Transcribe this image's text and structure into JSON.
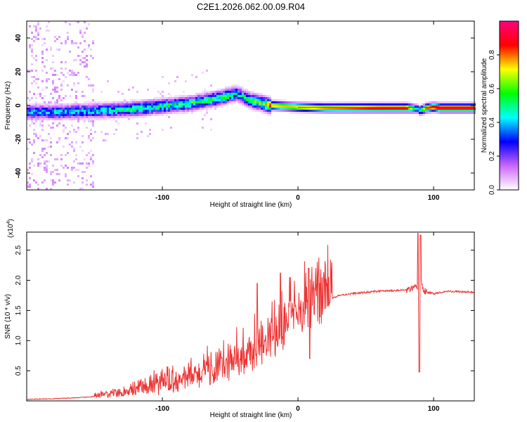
{
  "title": "C2E1.2026.062.00.09.R04",
  "chart_data": [
    {
      "type": "heatmap",
      "title": "C2E1.2026.062.00.09.R04",
      "xlabel": "Height of straight line (km)",
      "ylabel": "Frequency (Hz)",
      "xlim": [
        -200,
        130
      ],
      "ylim": [
        -50,
        50
      ],
      "xticks": [
        -100,
        0,
        100
      ],
      "xtick_labels": [
        "-100",
        "0",
        "100"
      ],
      "yticks": [
        -40,
        -20,
        0,
        20,
        40
      ],
      "ytick_labels": [
        "-40",
        "-20",
        "0",
        "20",
        "40"
      ],
      "colorbar": {
        "label": "Normalized spectral amplitude",
        "range": [
          0,
          1
        ],
        "ticks": [
          0.0,
          0.2,
          0.4,
          0.6,
          0.8
        ],
        "tick_labels": [
          "0.0",
          "0.2",
          "0.4",
          "0.6",
          "0.8"
        ],
        "colors": [
          "#ffffff",
          "#cc66ff",
          "#0000ff",
          "#00ffff",
          "#00ff00",
          "#ffff00",
          "#ff0000",
          "#ff0080"
        ]
      },
      "ridge": {
        "heights_km": [
          -200,
          -180,
          -160,
          -140,
          -120,
          -100,
          -80,
          -60,
          -50,
          -45,
          -40,
          -35,
          -30,
          -25,
          -20,
          -10,
          0,
          20,
          40,
          60,
          80,
          85,
          88,
          90,
          95,
          100,
          105,
          110,
          130
        ],
        "frequency_hz": [
          -4,
          -4,
          -3.5,
          -3,
          -2,
          -0.5,
          1,
          4,
          6,
          7,
          5,
          3,
          2,
          1,
          0,
          -0.5,
          -1,
          -1.5,
          -1.5,
          -1.5,
          -1.5,
          -1.8,
          -2,
          -3,
          -1.5,
          -1,
          -1.5,
          -1.5,
          -1.5
        ],
        "amplitude": [
          0.35,
          0.4,
          0.4,
          0.45,
          0.5,
          0.5,
          0.55,
          0.55,
          0.5,
          0.45,
          0.5,
          0.55,
          0.6,
          0.7,
          0.75,
          0.75,
          0.75,
          0.8,
          0.85,
          0.9,
          0.9,
          0.6,
          0.4,
          0.5,
          0.85,
          0.9,
          0.95,
          0.95,
          0.95
        ]
      }
    },
    {
      "type": "line",
      "xlabel": "Height of straight line (km)",
      "ylabel": "SNR (10 * v/v)",
      "scale_label": "(x10",
      "scale_exponent": "4",
      "scale_suffix": ")",
      "xlim": [
        -200,
        130
      ],
      "ylim": [
        0,
        2.8
      ],
      "xticks": [
        -100,
        0,
        100
      ],
      "xtick_labels": [
        "-100",
        "0",
        "100"
      ],
      "yticks": [
        0.5,
        1.0,
        1.5,
        2.0,
        2.5
      ],
      "ytick_labels": [
        "0.5",
        "1.0",
        "1.5",
        "2.0",
        "2.5"
      ],
      "series": [
        {
          "name": "SNR",
          "color": "#ee3333",
          "x": [
            -200,
            -180,
            -160,
            -140,
            -120,
            -100,
            -90,
            -80,
            -70,
            -60,
            -50,
            -40,
            -30,
            -25,
            -20,
            -15,
            -10,
            -5,
            0,
            5,
            10,
            15,
            20,
            25,
            30,
            40,
            50,
            60,
            70,
            80,
            85,
            88,
            89,
            90,
            91,
            92,
            95,
            100,
            105,
            110,
            120,
            130
          ],
          "y": [
            0.02,
            0.03,
            0.05,
            0.08,
            0.12,
            0.18,
            0.22,
            0.28,
            0.32,
            0.38,
            0.45,
            0.55,
            0.65,
            0.72,
            0.82,
            0.95,
            1.05,
            1.15,
            1.25,
            1.3,
            1.35,
            1.45,
            1.6,
            1.7,
            1.75,
            1.78,
            1.8,
            1.82,
            1.83,
            1.84,
            1.85,
            1.9,
            1.4,
            1.85,
            2.0,
            1.85,
            1.8,
            1.78,
            1.8,
            1.82,
            1.81,
            1.8
          ]
        }
      ]
    }
  ]
}
